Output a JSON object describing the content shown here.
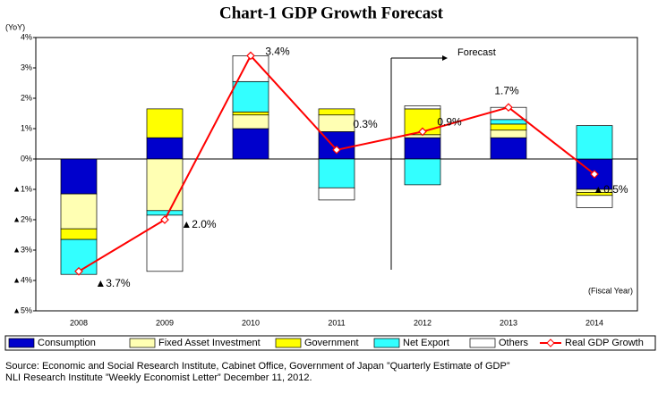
{
  "chart_data": {
    "type": "bar",
    "title": "Chart-1 GDP Growth Forecast",
    "y_label": "(YoY)",
    "x_label": "(Fiscal Year)",
    "annotation": "Forecast",
    "categories": [
      "2008",
      "2009",
      "2010",
      "2011",
      "2012",
      "2013",
      "2014"
    ],
    "series": [
      {
        "name": "Consumption",
        "color": "#0000cc",
        "type": "bar",
        "values": [
          -1.15,
          0.7,
          1.0,
          0.9,
          0.7,
          0.7,
          -1.0
        ]
      },
      {
        "name": "Fixed Asset Investment",
        "color": "#ffffb3",
        "type": "bar",
        "values": [
          -1.15,
          -1.7,
          0.45,
          0.55,
          0.1,
          0.25,
          -0.1
        ]
      },
      {
        "name": "Government",
        "color": "#ffff00",
        "type": "bar",
        "values": [
          -0.35,
          0.95,
          0.1,
          0.2,
          0.85,
          0.2,
          -0.1
        ]
      },
      {
        "name": "Net Export",
        "color": "#33ffff",
        "type": "bar",
        "values": [
          -1.15,
          -0.15,
          1.0,
          -0.95,
          -0.85,
          0.15,
          1.1
        ]
      },
      {
        "name": "Others",
        "color": "#ffffff",
        "type": "bar",
        "values": [
          0,
          -1.85,
          0.85,
          -0.4,
          0.1,
          0.4,
          -0.4
        ]
      },
      {
        "name": "Real GDP Growth",
        "color": "#ff0000",
        "type": "line",
        "values": [
          -3.7,
          -2.0,
          3.4,
          0.3,
          0.9,
          1.7,
          -0.5
        ],
        "value_labels": [
          "▲3.7%",
          "▲2.0%",
          "3.4%",
          "0.3%",
          "0.9%",
          "1.7%",
          "▲0.5%"
        ]
      }
    ],
    "ylim": [
      -5,
      4
    ],
    "yticks": [
      {
        "value": -5,
        "label": "▲5%"
      },
      {
        "value": -4,
        "label": "▲4%"
      },
      {
        "value": -3,
        "label": "▲3%"
      },
      {
        "value": -2,
        "label": "▲2%"
      },
      {
        "value": -1,
        "label": "▲1%"
      },
      {
        "value": 0,
        "label": "0%"
      },
      {
        "value": 1,
        "label": "1%"
      },
      {
        "value": 2,
        "label": "2%"
      },
      {
        "value": 3,
        "label": "3%"
      },
      {
        "value": 4,
        "label": "4%"
      }
    ],
    "source": [
      "Source: Economic and Social Research Institute, Cabinet Office, Government of Japan ”Quarterly Estimate of GDP”",
      "NLI Research Institute ”Weekly Economist Letter” December 11, 2012."
    ]
  }
}
